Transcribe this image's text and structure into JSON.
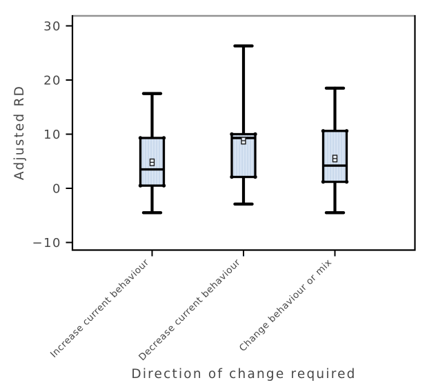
{
  "figure": {
    "background": "#ffffff"
  },
  "chart_data": {
    "type": "boxplot",
    "title": "",
    "xlabel": "Direction of change required",
    "ylabel": "Adjusted RD",
    "categories": [
      "Increase current behaviour",
      "Decrease current behaviour",
      "Change behaviour or mix"
    ],
    "series": [
      {
        "category": "Increase current behaviour",
        "low": -4.5,
        "q1": 0.5,
        "median": 3.5,
        "q3": 9.3,
        "high": 17.5,
        "mean": 4.8
      },
      {
        "category": "Decrease current behaviour",
        "low": -2.9,
        "q1": 2.1,
        "median": 9.3,
        "q3": 10.0,
        "high": 26.3,
        "mean": 8.8
      },
      {
        "category": "Change behaviour or mix",
        "low": -4.5,
        "q1": 1.2,
        "median": 4.2,
        "q3": 10.6,
        "high": 18.5,
        "mean": 5.5
      }
    ],
    "yticks": [
      {
        "value": 30,
        "label": "30"
      },
      {
        "value": 20,
        "label": "20"
      },
      {
        "value": 10,
        "label": "10"
      },
      {
        "value": 0,
        "label": "0"
      },
      {
        "value": -10,
        "label": "−10"
      }
    ],
    "ylim": [
      -11.4,
      31.9
    ],
    "grid": false,
    "legend": null,
    "mean_marker": "open-square-with-midline",
    "colors": {
      "box_fill": "#d8e4f3",
      "box_stripe": "#c4d5e9",
      "box_border": "#000000",
      "whisker": "#000000",
      "median": "#000000",
      "mean_fill": "#eaf1f9",
      "mean_stroke": "#1a1a1a",
      "frame_top": "#929292",
      "frame": "#000000",
      "text": "#474747"
    }
  }
}
